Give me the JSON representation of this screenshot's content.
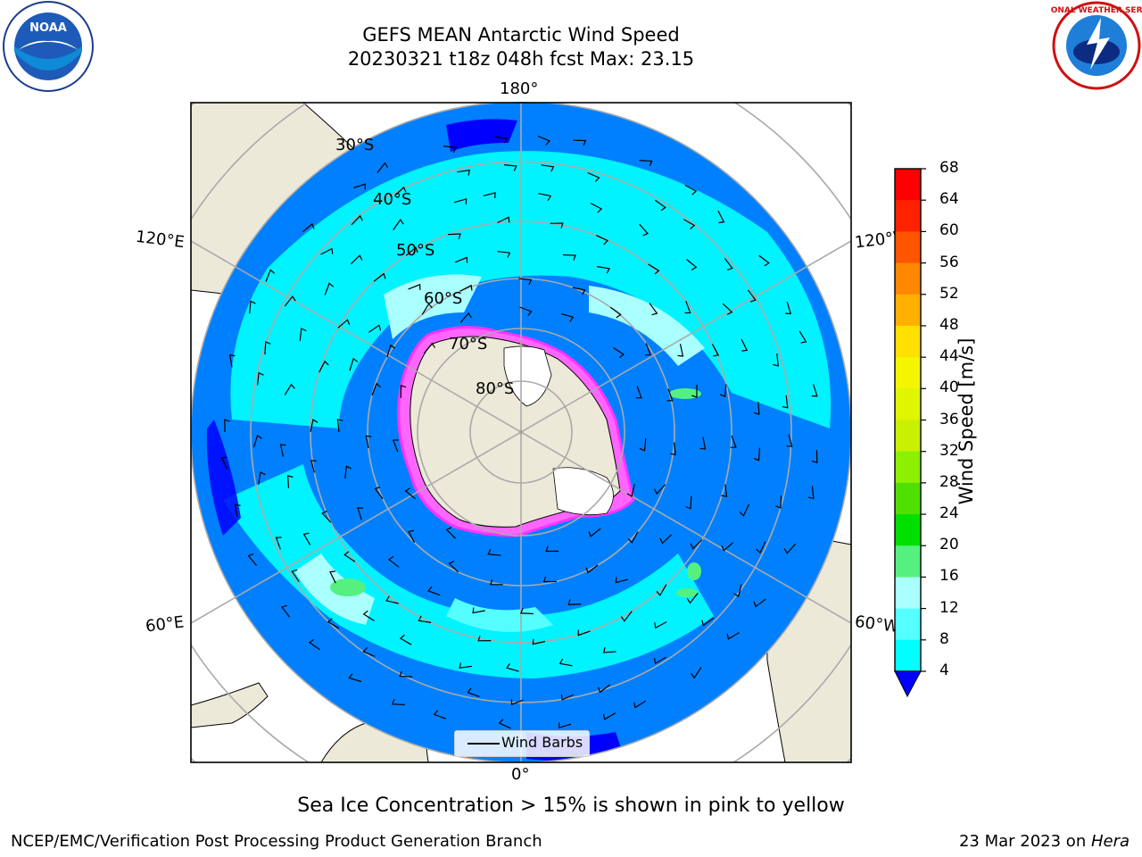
{
  "header": {
    "title_line1": "GEFS MEAN Antarctic Wind Speed",
    "title_line2": "20230321 t18z 048h fcst   Max: 23.15"
  },
  "map": {
    "longitude_labels": {
      "top": "180°",
      "bottom": "0°",
      "left_upper": "120°E",
      "left_lower": "60°E",
      "right_upper": "120°W",
      "right_lower": "60°W"
    },
    "latitude_labels": [
      "30°S",
      "40°S",
      "50°S",
      "60°S",
      "70°S",
      "80°S"
    ],
    "legend_label": "Wind Barbs"
  },
  "colorbar": {
    "label": "Wind Speed [m/s]",
    "ticks": [
      "68",
      "64",
      "60",
      "56",
      "52",
      "48",
      "44",
      "40",
      "36",
      "32",
      "28",
      "24",
      "20",
      "16",
      "12",
      "8",
      "4"
    ],
    "colors": [
      "#ff0000",
      "#ff2200",
      "#ff5500",
      "#ff8800",
      "#ffb000",
      "#ffe000",
      "#f5f500",
      "#e0f500",
      "#c8f000",
      "#8cf000",
      "#50e000",
      "#00e000",
      "#55f080",
      "#aaffff",
      "#55ffff",
      "#00ffff",
      "#0080ff"
    ],
    "underflow_color": "#0000ff"
  },
  "footer": {
    "caption": "Sea Ice Concentration > 15% is shown in pink to yellow",
    "left": "NCEP/EMC/Verification Post Processing Product Generation Branch",
    "right_prefix": "23 Mar 2023 on ",
    "right_machine": "Hera"
  },
  "logos": {
    "noaa_text": "NOAA",
    "nws_text": "NATIONAL WEATHER SERVICE"
  }
}
